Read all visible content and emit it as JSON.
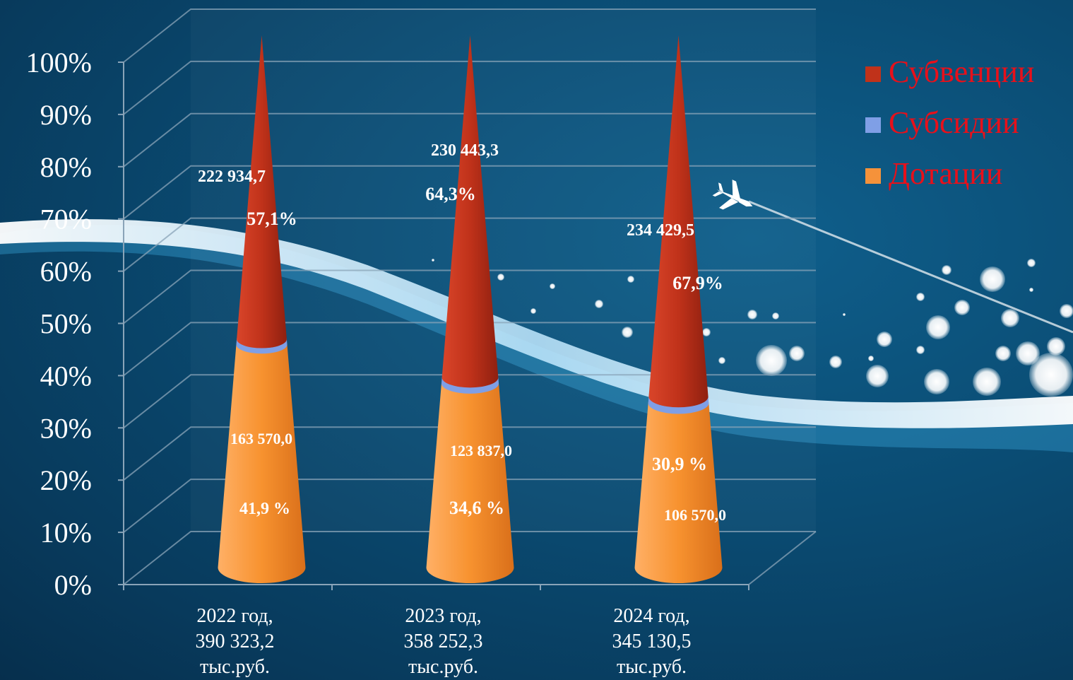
{
  "chart_data": {
    "type": "bar",
    "style": "3d-cone-stacked-100",
    "categories": [
      [
        "2022 год,",
        "390 323,2",
        "тыс.руб."
      ],
      [
        "2023 год,",
        "358 252,3",
        "тыс.руб."
      ],
      [
        "2024 год,",
        "345 130,5",
        "тыс.руб."
      ]
    ],
    "y_ticks": [
      "0%",
      "10%",
      "20%",
      "30%",
      "40%",
      "50%",
      "60%",
      "70%",
      "80%",
      "90%",
      "100%"
    ],
    "ylim": [
      0,
      100
    ],
    "grid": true,
    "legend_position": "top-right",
    "series": [
      {
        "name": "Субвенции",
        "color": "#c0321a",
        "percent": [
          57.1,
          64.3,
          67.9
        ],
        "amounts": [
          222934.7,
          230443.3,
          234429.5
        ],
        "amount_labels": [
          "222 934,7",
          "230 443,3",
          "234 429,5"
        ],
        "percent_labels": [
          "57,1%",
          "64,3%",
          "67,9%"
        ]
      },
      {
        "name": "Субсидии",
        "color": "#7f9fe6",
        "percent": [
          1.0,
          1.1,
          1.2
        ],
        "amount_labels": [],
        "percent_labels": []
      },
      {
        "name": "Дотации",
        "color": "#f5923a",
        "percent": [
          41.9,
          34.6,
          30.9
        ],
        "amounts": [
          163570.0,
          123837.0,
          106570.0
        ],
        "amount_labels": [
          "163 570,0",
          "123 837,0",
          "106 570,0"
        ],
        "percent_labels": [
          "41,9 %",
          "34,6 %",
          "30,9 %"
        ]
      }
    ],
    "legend_text_color": "#e8101a"
  }
}
